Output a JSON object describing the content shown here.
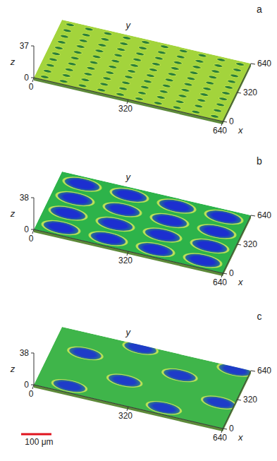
{
  "chart_data": [
    {
      "type": "surface",
      "title": "a",
      "x_label": "x",
      "y_label": "y",
      "z_label": "z",
      "xlim": [
        0,
        640
      ],
      "ylim": [
        0,
        640
      ],
      "zlim": [
        0,
        37
      ],
      "xticks": [
        0,
        320,
        640
      ],
      "yticks": [
        0,
        320,
        640
      ],
      "zticks": [
        0,
        37
      ],
      "color": "#a3d43c",
      "series": [
        {
          "type": "dimple",
          "color": "#2a7f3a",
          "diameter": 30,
          "x": [
            32,
            96,
            160,
            224,
            288,
            352,
            416,
            480,
            544,
            608,
            32,
            96,
            160,
            224,
            288,
            352,
            416,
            480,
            544,
            608,
            32,
            96,
            160,
            224,
            288,
            352,
            416,
            480,
            544,
            608,
            32,
            96,
            160,
            224,
            288,
            352,
            416,
            480,
            544,
            608,
            32,
            96,
            160,
            224,
            288,
            352,
            416,
            480,
            544,
            608,
            32,
            96,
            160,
            224,
            288,
            352,
            416,
            480,
            544,
            608,
            32,
            96,
            160,
            224,
            288,
            352,
            416,
            480,
            544,
            608,
            32,
            96,
            160,
            224,
            288,
            352,
            416,
            480,
            544,
            608,
            32,
            96,
            160,
            224,
            288,
            352,
            416,
            480,
            544,
            608,
            32,
            96,
            160,
            224,
            288,
            352,
            416,
            480,
            544,
            608
          ],
          "y": [
            32,
            32,
            32,
            32,
            32,
            32,
            32,
            32,
            32,
            32,
            96,
            96,
            96,
            96,
            96,
            96,
            96,
            96,
            96,
            96,
            160,
            160,
            160,
            160,
            160,
            160,
            160,
            160,
            160,
            160,
            224,
            224,
            224,
            224,
            224,
            224,
            224,
            224,
            224,
            224,
            288,
            288,
            288,
            288,
            288,
            288,
            288,
            288,
            288,
            288,
            352,
            352,
            352,
            352,
            352,
            352,
            352,
            352,
            352,
            352,
            416,
            416,
            416,
            416,
            416,
            416,
            416,
            416,
            416,
            416,
            480,
            480,
            480,
            480,
            480,
            480,
            480,
            480,
            480,
            480,
            544,
            544,
            544,
            544,
            544,
            544,
            544,
            544,
            544,
            544,
            608,
            608,
            608,
            608,
            608,
            608,
            608,
            608,
            608,
            608
          ]
        }
      ]
    },
    {
      "type": "surface",
      "title": "b",
      "x_label": "x",
      "y_label": "y",
      "z_label": "z",
      "xlim": [
        0,
        640
      ],
      "ylim": [
        0,
        640
      ],
      "zlim": [
        0,
        38
      ],
      "xticks": [
        0,
        320,
        640
      ],
      "yticks": [
        0,
        320,
        640
      ],
      "zticks": [
        0,
        38
      ],
      "color": "#2db34a",
      "series": [
        {
          "type": "dimple",
          "color": "#1c2fd0",
          "diameter": 125,
          "x": [
            80,
            240,
            400,
            560,
            80,
            240,
            400,
            560,
            80,
            240,
            400,
            560,
            80,
            240,
            400,
            560
          ],
          "y": [
            80,
            80,
            80,
            80,
            240,
            240,
            240,
            240,
            400,
            400,
            400,
            400,
            560,
            560,
            560,
            560
          ]
        }
      ]
    },
    {
      "type": "surface",
      "title": "c",
      "x_label": "x",
      "y_label": "y",
      "z_label": "z",
      "xlim": [
        0,
        640
      ],
      "ylim": [
        0,
        640
      ],
      "zlim": [
        0,
        38
      ],
      "xticks": [
        0,
        320,
        640
      ],
      "yticks": [
        0,
        320,
        640
      ],
      "zticks": [
        0,
        38
      ],
      "color": "#3fb54a",
      "scale_bar": {
        "label": "100 μm",
        "length": 100
      },
      "series": [
        {
          "type": "dimple",
          "color": "#1e3cc8",
          "diameter": 115,
          "x": [
            110,
            430,
            270,
            590,
            110,
            430,
            270,
            590
          ],
          "y": [
            70,
            70,
            250,
            250,
            430,
            430,
            610,
            610
          ]
        }
      ]
    }
  ]
}
